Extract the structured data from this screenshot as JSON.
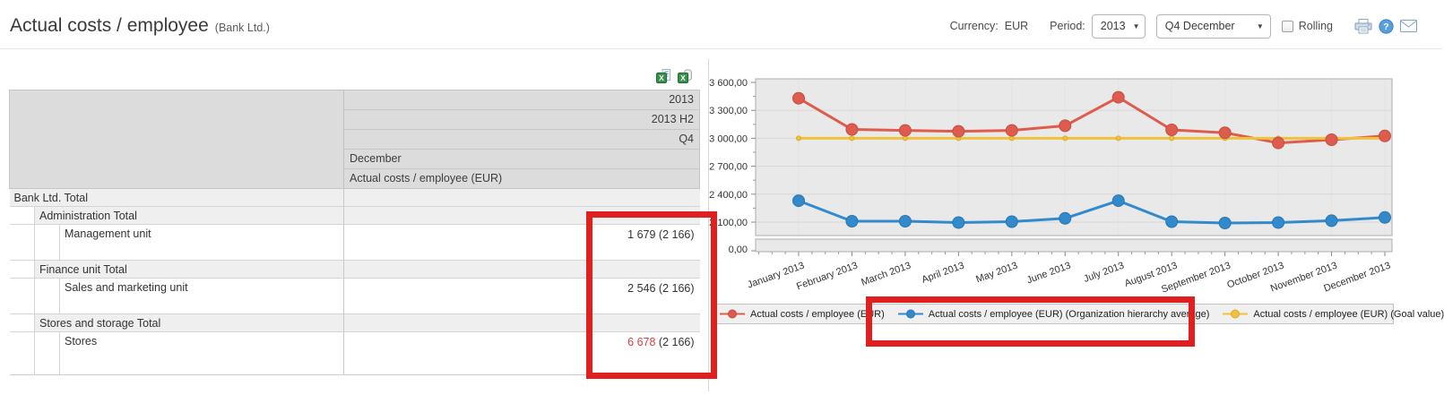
{
  "header": {
    "title": "Actual costs / employee",
    "subtitle": "(Bank Ltd.)",
    "currency_label": "Currency:",
    "currency_value": "EUR",
    "period_label": "Period:",
    "year_value": "2013",
    "period_value": "Q4 December",
    "rolling_label": "Rolling"
  },
  "icons": {
    "print": "print-icon",
    "help": "help-icon",
    "mail": "mail-icon",
    "export_excel": "excel-export-icon",
    "export_excel_alt": "excel-export-clipboard-icon"
  },
  "table": {
    "header_rows": [
      {
        "text": "2013",
        "align": "right"
      },
      {
        "text": "2013 H2",
        "align": "right"
      },
      {
        "text": "Q4",
        "align": "right"
      },
      {
        "text": "December",
        "align": "left"
      },
      {
        "text": "Actual costs / employee (EUR)",
        "align": "left"
      }
    ],
    "rows": [
      {
        "label": "Bank Ltd. Total",
        "level": 0,
        "kind": "total",
        "value": "",
        "reference": "",
        "alert": false,
        "height": 20
      },
      {
        "label": "Administration Total",
        "level": 1,
        "kind": "total",
        "value": "",
        "reference": "",
        "alert": false,
        "height": 20
      },
      {
        "label": "Management unit",
        "level": 2,
        "kind": "unit",
        "value": "1 679",
        "reference": "(2 166)",
        "alert": false,
        "height": 40
      },
      {
        "label": "Finance unit Total",
        "level": 1,
        "kind": "total",
        "value": "",
        "reference": "",
        "alert": false,
        "height": 20
      },
      {
        "label": "Sales and marketing unit",
        "level": 2,
        "kind": "unit",
        "value": "2 546",
        "reference": "(2 166)",
        "alert": false,
        "height": 40
      },
      {
        "label": "Stores and storage Total",
        "level": 1,
        "kind": "total",
        "value": "",
        "reference": "",
        "alert": false,
        "height": 20
      },
      {
        "label": "Stores",
        "level": 2,
        "kind": "unit",
        "value": "6 678",
        "reference": "(2 166)",
        "alert": true,
        "height": 48
      }
    ]
  },
  "chart_data": {
    "type": "line",
    "title": "",
    "x": [
      "January 2013",
      "February 2013",
      "March 2013",
      "April 2013",
      "May 2013",
      "June 2013",
      "July 2013",
      "August 2013",
      "September 2013",
      "October 2013",
      "November 2013",
      "December 2013"
    ],
    "series": [
      {
        "name": "Actual costs / employee (EUR)",
        "color": "#de5b4d",
        "marker_stroke": "#c24f43",
        "marker_r": 6.5,
        "values": [
          3430,
          3095,
          3085,
          3075,
          3085,
          3135,
          3440,
          3090,
          3060,
          2950,
          2985,
          3025
        ]
      },
      {
        "name": "Actual costs / employee (EUR) (Organization hierarchy average)",
        "color": "#3289cb",
        "marker_stroke": "#2a76b0",
        "marker_r": 6.5,
        "values": [
          2330,
          2110,
          2110,
          2095,
          2105,
          2140,
          2330,
          2105,
          2090,
          2095,
          2115,
          2150
        ]
      },
      {
        "name": "Actual costs / employee (EUR) (Goal value)",
        "color": "#f0c23c",
        "marker_stroke": "#d9a92e",
        "marker_r": 2.5,
        "values": [
          3000,
          3000,
          3000,
          3000,
          3000,
          3000,
          3000,
          3000,
          3000,
          3000,
          3000,
          3000
        ]
      }
    ],
    "y_ticks": [
      3600,
      3300,
      3000,
      2700,
      2400,
      2100
    ],
    "y_tick_labels": [
      "3 600,00",
      "3 300,00",
      "3 000,00",
      "2 700,00",
      "2 400,00",
      "2 100,00"
    ],
    "y_zero_label": "0,00",
    "ylim": [
      0,
      3600
    ],
    "scale_break": {
      "hidden_range": [
        0,
        2000
      ]
    },
    "grid": true,
    "legend_position": "bottom"
  },
  "colors": {
    "annotation_box": "#e01f1f",
    "table_header_bg": "#dcdcdc",
    "total_row_bg": "#efefef",
    "alert_value": "#e03a3a",
    "chart_bg": "#e9e9e9",
    "chart_border": "#adadad",
    "gridline": "#d8d8d8"
  }
}
